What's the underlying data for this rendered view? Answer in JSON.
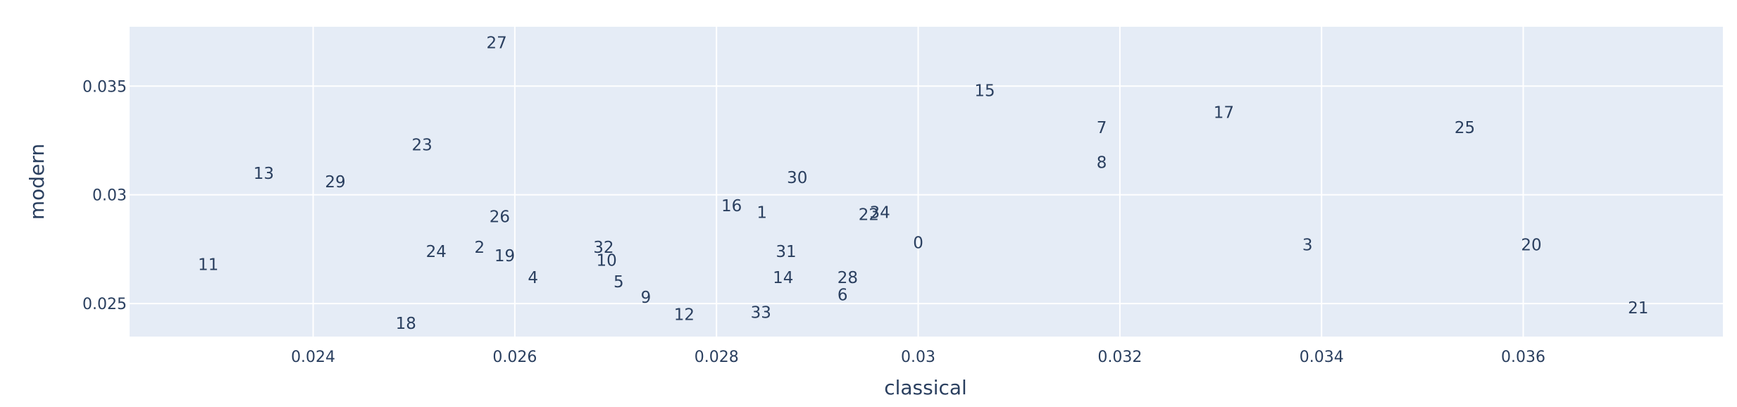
{
  "chart_data": {
    "type": "scatter",
    "mode": "text",
    "xlabel": "classical",
    "ylabel": "modern",
    "xlim": [
      0.02218,
      0.03798
    ],
    "ylim": [
      0.02348,
      0.03773
    ],
    "xticks": [
      0.024,
      0.026,
      0.028,
      0.03,
      0.032,
      0.034,
      0.036
    ],
    "yticks": [
      0.025,
      0.03,
      0.035
    ],
    "xtick_labels": [
      "0.024",
      "0.026",
      "0.028",
      "0.03",
      "0.032",
      "0.034",
      "0.036"
    ],
    "ytick_labels": [
      "0.025",
      "0.03",
      "0.035"
    ],
    "grid": true,
    "colors": {
      "plot_bg": "#e5ecf6",
      "grid": "#ffffff",
      "text": "#2a3f5f"
    },
    "points": [
      {
        "label": "0",
        "x": 0.03,
        "y": 0.0278
      },
      {
        "label": "1",
        "x": 0.02845,
        "y": 0.0292
      },
      {
        "label": "2",
        "x": 0.02565,
        "y": 0.0276
      },
      {
        "label": "3",
        "x": 0.03386,
        "y": 0.0277
      },
      {
        "label": "4",
        "x": 0.02618,
        "y": 0.0262
      },
      {
        "label": "5",
        "x": 0.02703,
        "y": 0.026
      },
      {
        "label": "6",
        "x": 0.02925,
        "y": 0.0254
      },
      {
        "label": "7",
        "x": 0.03182,
        "y": 0.0331
      },
      {
        "label": "8",
        "x": 0.03182,
        "y": 0.0315
      },
      {
        "label": "9",
        "x": 0.0273,
        "y": 0.0253
      },
      {
        "label": "10",
        "x": 0.02691,
        "y": 0.027
      },
      {
        "label": "11",
        "x": 0.02296,
        "y": 0.0268
      },
      {
        "label": "12",
        "x": 0.02768,
        "y": 0.0245
      },
      {
        "label": "13",
        "x": 0.02351,
        "y": 0.031
      },
      {
        "label": "14",
        "x": 0.02866,
        "y": 0.0262
      },
      {
        "label": "15",
        "x": 0.03066,
        "y": 0.0348
      },
      {
        "label": "16",
        "x": 0.02815,
        "y": 0.0295
      },
      {
        "label": "17",
        "x": 0.03303,
        "y": 0.0338
      },
      {
        "label": "18",
        "x": 0.02492,
        "y": 0.0241
      },
      {
        "label": "19",
        "x": 0.0259,
        "y": 0.0272
      },
      {
        "label": "20",
        "x": 0.03608,
        "y": 0.0277
      },
      {
        "label": "21",
        "x": 0.03714,
        "y": 0.0248
      },
      {
        "label": "22",
        "x": 0.02951,
        "y": 0.0291
      },
      {
        "label": "23",
        "x": 0.02508,
        "y": 0.0323
      },
      {
        "label": "24",
        "x": 0.02522,
        "y": 0.0274
      },
      {
        "label": "25",
        "x": 0.03542,
        "y": 0.0331
      },
      {
        "label": "26",
        "x": 0.02585,
        "y": 0.029
      },
      {
        "label": "27",
        "x": 0.02582,
        "y": 0.037
      },
      {
        "label": "28",
        "x": 0.0293,
        "y": 0.0262
      },
      {
        "label": "29",
        "x": 0.02422,
        "y": 0.0306
      },
      {
        "label": "30",
        "x": 0.0288,
        "y": 0.0308
      },
      {
        "label": "31",
        "x": 0.02869,
        "y": 0.0274
      },
      {
        "label": "32",
        "x": 0.02688,
        "y": 0.0276
      },
      {
        "label": "33",
        "x": 0.02844,
        "y": 0.0246
      },
      {
        "label": "34",
        "x": 0.02962,
        "y": 0.0292
      }
    ]
  }
}
